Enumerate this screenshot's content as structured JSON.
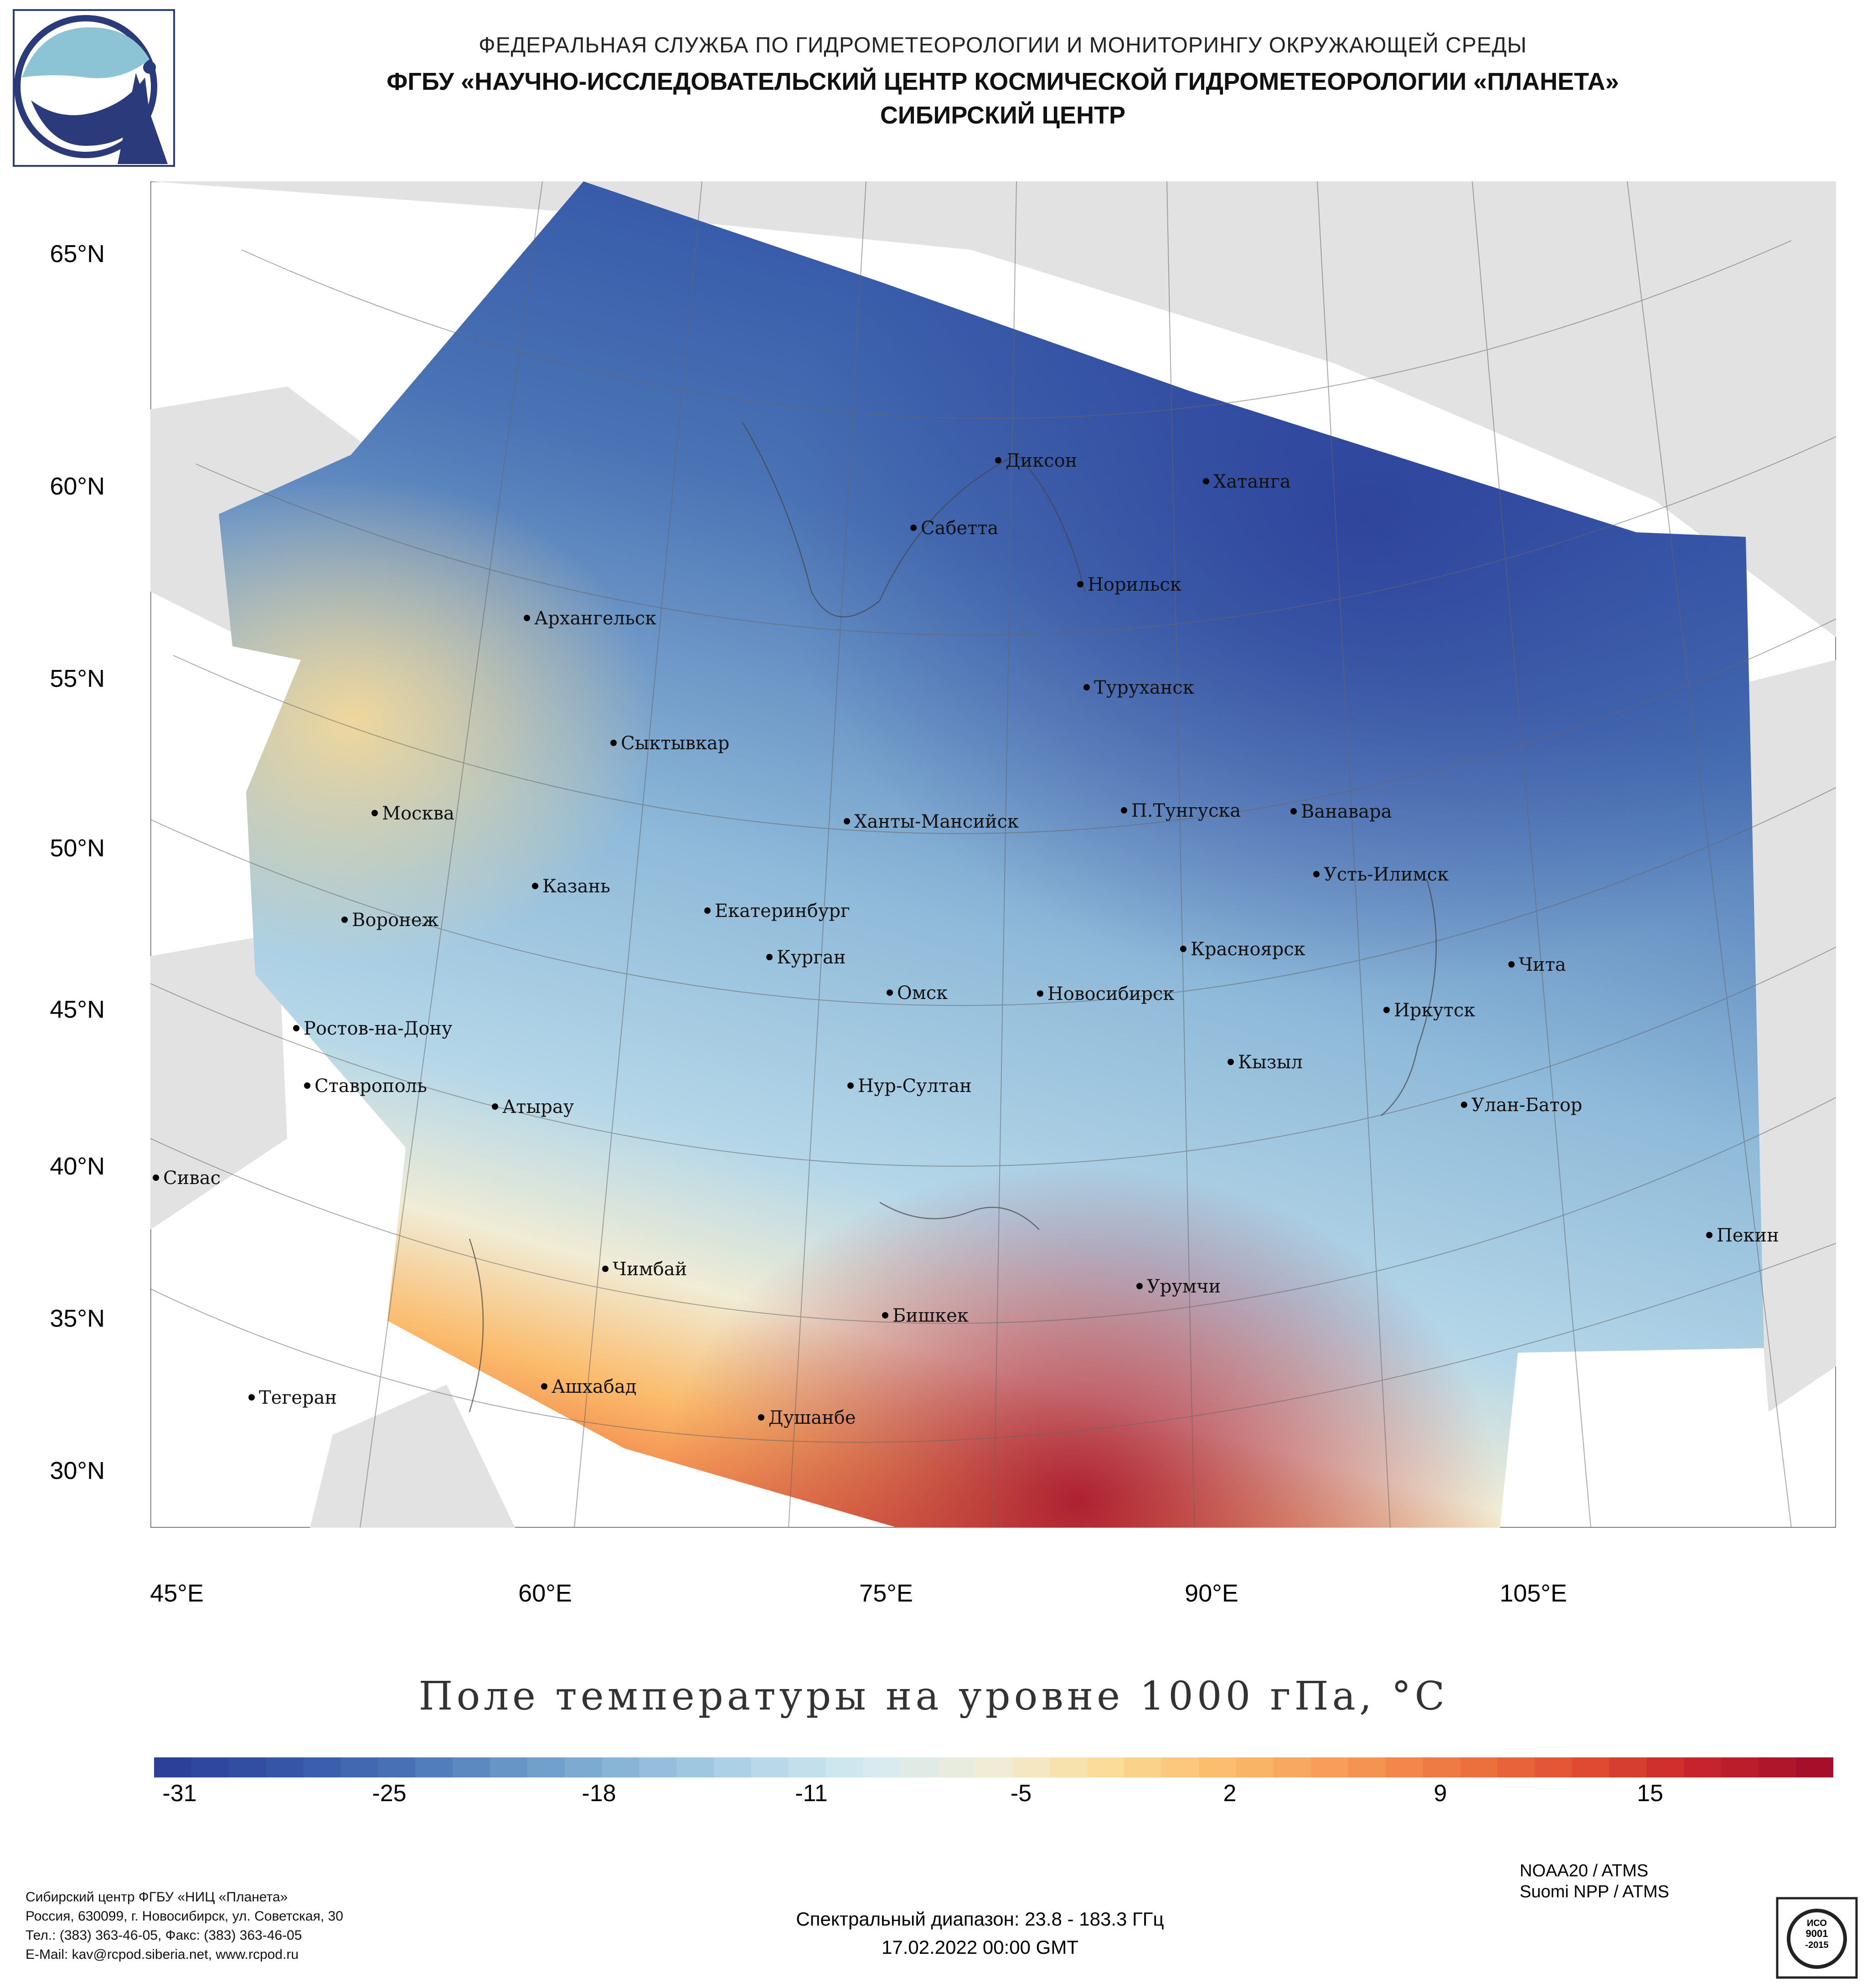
{
  "header": {
    "line1": "ФЕДЕРАЛЬНАЯ СЛУЖБА ПО ГИДРОМЕТЕОРОЛОГИИ И МОНИТОРИНГУ ОКРУЖАЮЩЕЙ СРЕДЫ",
    "line2": "ФГБУ «НАУЧНО-ИССЛЕДОВАТЕЛЬСКИЙ ЦЕНТР КОСМИЧЕСКОЙ ГИДРОМЕТЕОРОЛОГИИ «ПЛАНЕТА»",
    "line3": "СИБИРСКИЙ ЦЕНТР"
  },
  "map": {
    "lat_labels": [
      "65°N",
      "60°N",
      "55°N",
      "50°N",
      "45°N",
      "40°N",
      "35°N",
      "30°N"
    ],
    "lon_labels": [
      "45°E",
      "60°E",
      "75°E",
      "90°E",
      "105°E"
    ],
    "cities": [
      {
        "name": "Диксон"
      },
      {
        "name": "Хатанга"
      },
      {
        "name": "Сабетта"
      },
      {
        "name": "Норильск"
      },
      {
        "name": "Архангельск"
      },
      {
        "name": "Туруханск"
      },
      {
        "name": "Сыктывкар"
      },
      {
        "name": "Москва"
      },
      {
        "name": "Ханты-Мансийск"
      },
      {
        "name": "П.Тунгуска"
      },
      {
        "name": "Ванавара"
      },
      {
        "name": "Усть-Илимск"
      },
      {
        "name": "Казань"
      },
      {
        "name": "Воронеж"
      },
      {
        "name": "Екатеринбург"
      },
      {
        "name": "Курган"
      },
      {
        "name": "Красноярск"
      },
      {
        "name": "Чита"
      },
      {
        "name": "Омск"
      },
      {
        "name": "Новосибирск"
      },
      {
        "name": "Ростов-на-Дону"
      },
      {
        "name": "Иркутск"
      },
      {
        "name": "Кызыл"
      },
      {
        "name": "Ставрополь"
      },
      {
        "name": "Нур-Султан"
      },
      {
        "name": "Улан-Батор"
      },
      {
        "name": "Атырау"
      },
      {
        "name": "Сивас"
      },
      {
        "name": "Пекин"
      },
      {
        "name": "Чимбай"
      },
      {
        "name": "Урумчи"
      },
      {
        "name": "Бишкек"
      },
      {
        "name": "Ашхабад"
      },
      {
        "name": "Тегеран"
      },
      {
        "name": "Душанбе"
      }
    ]
  },
  "title": "Поле температуры на уровне 1000 гПа, °C",
  "colorbar": {
    "ticks": [
      "-31",
      "-25",
      "-18",
      "-11",
      "-5",
      "2",
      "9",
      "15"
    ],
    "colors": [
      "#2c3f99",
      "#3557a8",
      "#4a74b5",
      "#6a9ac9",
      "#8fbad9",
      "#b5d7e8",
      "#d8ebf0",
      "#f0ecd5",
      "#fbdb96",
      "#fbbb6b",
      "#f69a55",
      "#ee7440",
      "#e04f33",
      "#c8252c",
      "#a50f2a"
    ]
  },
  "footer": {
    "org_lines": [
      "Сибирский центр ФГБУ «НИЦ «Планета»",
      "Россия, 630099, г. Новосибирск, ул. Советская, 30",
      "Тел.: (383) 363-46-05, Факс: (383) 363-46-05",
      "E-Mail: kav@rcpod.siberia.net, www.rcpod.ru"
    ],
    "spectral": "Спектральный диапазон: 23.8 - 183.3 ГГц",
    "datetime": "17.02.2022 00:00 GMT",
    "sat1": "NOAA20 / ATMS",
    "sat2": "Suomi NPP / ATMS",
    "iso_text": "ИСО 9001 -2015"
  }
}
